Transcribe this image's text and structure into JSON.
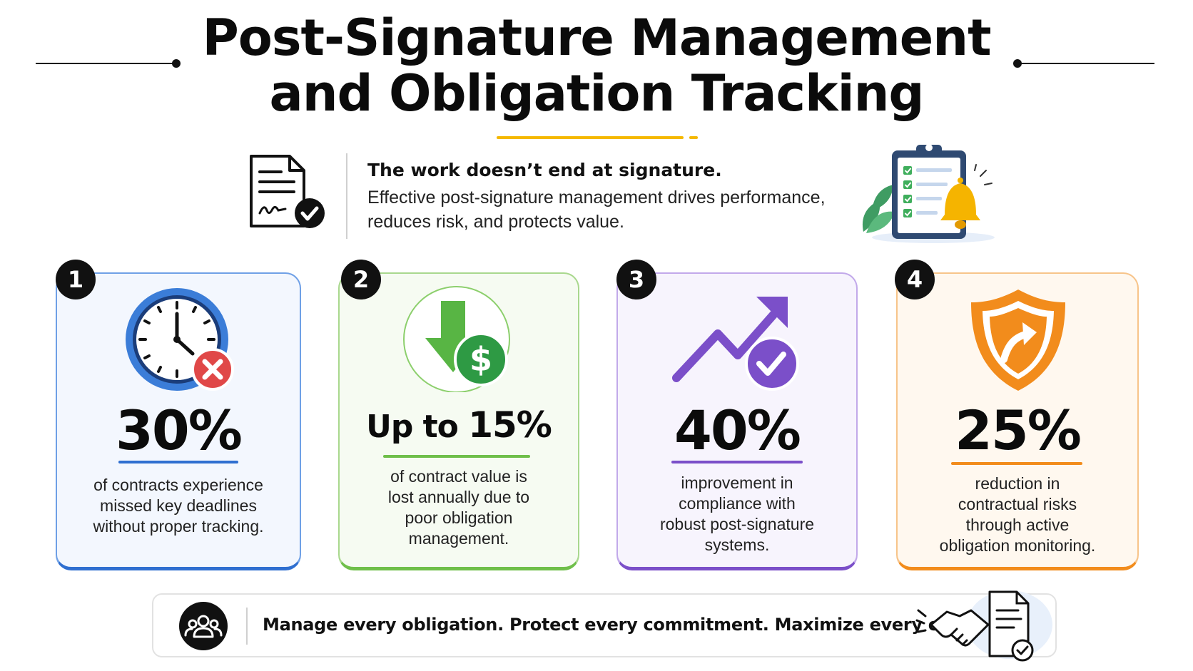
{
  "title": {
    "line1": "Post-Signature Management",
    "line2": "and Obligation Tracking"
  },
  "intro": {
    "heading": "The work doesn’t end at signature.",
    "body_line1": "Effective post-signature management drives performance,",
    "body_line2": "reduces risk, and protects value.",
    "left_icon": "signed-document-check-icon",
    "right_illustration": "clipboard-checklist-bell-icon"
  },
  "cards": [
    {
      "number": "1",
      "stat": "30%",
      "icon": "clock-missed-deadline-icon",
      "color": "#3b7dd8",
      "bg": "#f3f7fe",
      "desc": [
        "of contracts experience",
        "missed key deadlines",
        "without proper tracking."
      ]
    },
    {
      "number": "2",
      "stat": "Up to 15%",
      "stat_prefix": "Up to ",
      "stat_value": "15%",
      "icon": "down-arrow-dollar-icon",
      "color": "#6fbf4a",
      "bg": "#f6fbf2",
      "desc": [
        "of contract value is",
        "lost annually due to",
        "poor obligation",
        "management."
      ]
    },
    {
      "number": "3",
      "stat": "40%",
      "icon": "trend-up-check-icon",
      "color": "#7b4fc9",
      "bg": "#f7f4fd",
      "desc": [
        "improvement in",
        "compliance with",
        "robust post-signature",
        "systems."
      ]
    },
    {
      "number": "4",
      "stat": "25%",
      "icon": "shield-arrow-icon",
      "color": "#f28c1c",
      "bg": "#fff8ef",
      "desc": [
        "reduction in",
        "contractual risks",
        "through active",
        "obligation monitoring."
      ]
    }
  ],
  "footer": {
    "text": "Manage every obligation. Protect every commitment. Maximize every outcome.",
    "left_icon": "team-people-icon",
    "right_illustration": "handshake-document-icon"
  },
  "colors": {
    "accent_yellow": "#f5b800",
    "text_dark": "#0b0b0b"
  }
}
